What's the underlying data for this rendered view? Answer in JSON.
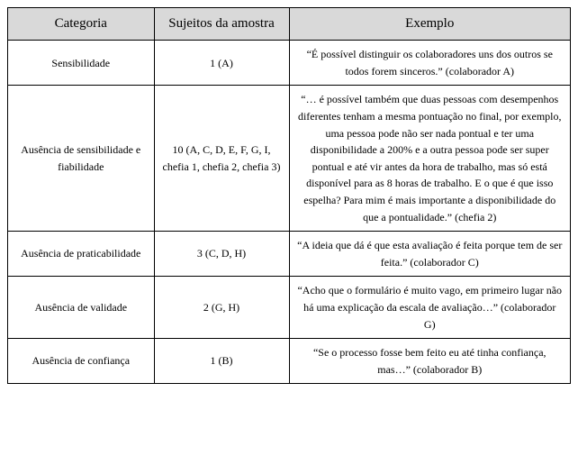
{
  "table": {
    "columns": {
      "c1": "Categoria",
      "c2": "Sujeitos da amostra",
      "c3": "Exemplo"
    },
    "rows": [
      {
        "categoria": "Sensibilidade",
        "sujeitos": "1 (A)",
        "exemplo": "“É possível distinguir os colaboradores uns dos outros se todos forem sinceros.” (colaborador A)"
      },
      {
        "categoria": "Ausência de sensibilidade e fiabilidade",
        "sujeitos": "10 (A, C, D, E, F, G, I, chefia 1, chefia 2, chefia 3)",
        "exemplo": "“… é possível também que duas pessoas com desempenhos diferentes tenham a mesma pontuação no final, por exemplo, uma pessoa pode não ser nada pontual e ter uma disponibilidade a 200% e a outra pessoa pode ser super pontual e até vir antes da hora de trabalho, mas só está disponível para as 8 horas de trabalho. E o que é que isso espelha? Para mim é mais importante a disponibilidade do que a pontualidade.” (chefia 2)"
      },
      {
        "categoria": "Ausência de praticabilidade",
        "sujeitos": "3 (C, D, H)",
        "exemplo": "“A ideia que dá é que esta avaliação é feita porque tem de ser feita.” (colaborador C)"
      },
      {
        "categoria": "Ausência de validade",
        "sujeitos": "2 (G, H)",
        "exemplo": "“Acho que o formulário é muito vago, em primeiro lugar não há uma explicação da escala de avaliação…” (colaborador G)"
      },
      {
        "categoria": "Ausência de confiança",
        "sujeitos": "1 (B)",
        "exemplo": "“Se o processo fosse bem feito eu até tinha confiança, mas…” (colaborador B)"
      }
    ],
    "style": {
      "header_background": "#d9d9d9",
      "cell_background": "#ffffff",
      "border_color": "#000000",
      "text_color": "#000000",
      "header_font_size_pt": 15,
      "body_font_size_pt": 12,
      "font_family": "Times New Roman",
      "col_widths_percent": [
        26,
        24,
        50
      ],
      "line_height": 1.55
    }
  }
}
